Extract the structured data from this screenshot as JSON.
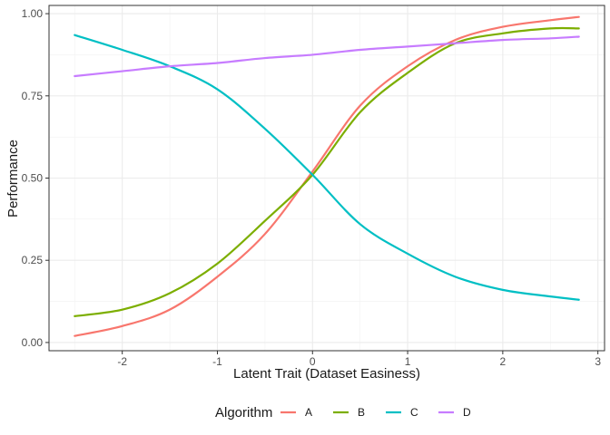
{
  "chart_data": {
    "type": "line",
    "xlabel": "Latent Trait (Dataset Easiness)",
    "ylabel": "Performance",
    "xlim": [
      -2.77,
      3.07
    ],
    "ylim": [
      -0.025,
      1.025
    ],
    "xticks": [
      -2,
      -1,
      0,
      1,
      2,
      3
    ],
    "xtick_labels": [
      "-2",
      "-1",
      "0",
      "1",
      "2",
      "3"
    ],
    "yticks": [
      0,
      0.25,
      0.5,
      0.75,
      1
    ],
    "ytick_labels": [
      "0.00",
      "0.25",
      "0.50",
      "0.75",
      "1.00"
    ],
    "grid": true,
    "legend": {
      "title": "Algorithm",
      "position": "bottom"
    },
    "series": [
      {
        "name": "A",
        "color": "#F8766D",
        "x": [
          -2.5,
          -2.0,
          -1.5,
          -1.0,
          -0.5,
          0.0,
          0.5,
          1.0,
          1.5,
          2.0,
          2.5,
          2.8
        ],
        "y": [
          0.02,
          0.05,
          0.1,
          0.2,
          0.33,
          0.52,
          0.72,
          0.84,
          0.92,
          0.96,
          0.98,
          0.99
        ]
      },
      {
        "name": "B",
        "color": "#7CAE00",
        "x": [
          -2.5,
          -2.0,
          -1.5,
          -1.0,
          -0.5,
          0.0,
          0.5,
          1.0,
          1.5,
          2.0,
          2.5,
          2.8
        ],
        "y": [
          0.08,
          0.1,
          0.15,
          0.24,
          0.37,
          0.51,
          0.7,
          0.82,
          0.91,
          0.94,
          0.955,
          0.955
        ]
      },
      {
        "name": "C",
        "color": "#00BFC4",
        "x": [
          -2.5,
          -2.0,
          -1.5,
          -1.0,
          -0.5,
          0.0,
          0.5,
          1.0,
          1.5,
          2.0,
          2.5,
          2.8
        ],
        "y": [
          0.935,
          0.89,
          0.84,
          0.77,
          0.65,
          0.51,
          0.36,
          0.27,
          0.2,
          0.16,
          0.14,
          0.13
        ]
      },
      {
        "name": "D",
        "color": "#C77CFF",
        "x": [
          -2.5,
          -2.0,
          -1.5,
          -1.0,
          -0.5,
          0.0,
          0.5,
          1.0,
          1.5,
          2.0,
          2.5,
          2.8
        ],
        "y": [
          0.81,
          0.825,
          0.84,
          0.85,
          0.865,
          0.875,
          0.89,
          0.9,
          0.91,
          0.92,
          0.925,
          0.93
        ]
      }
    ]
  }
}
